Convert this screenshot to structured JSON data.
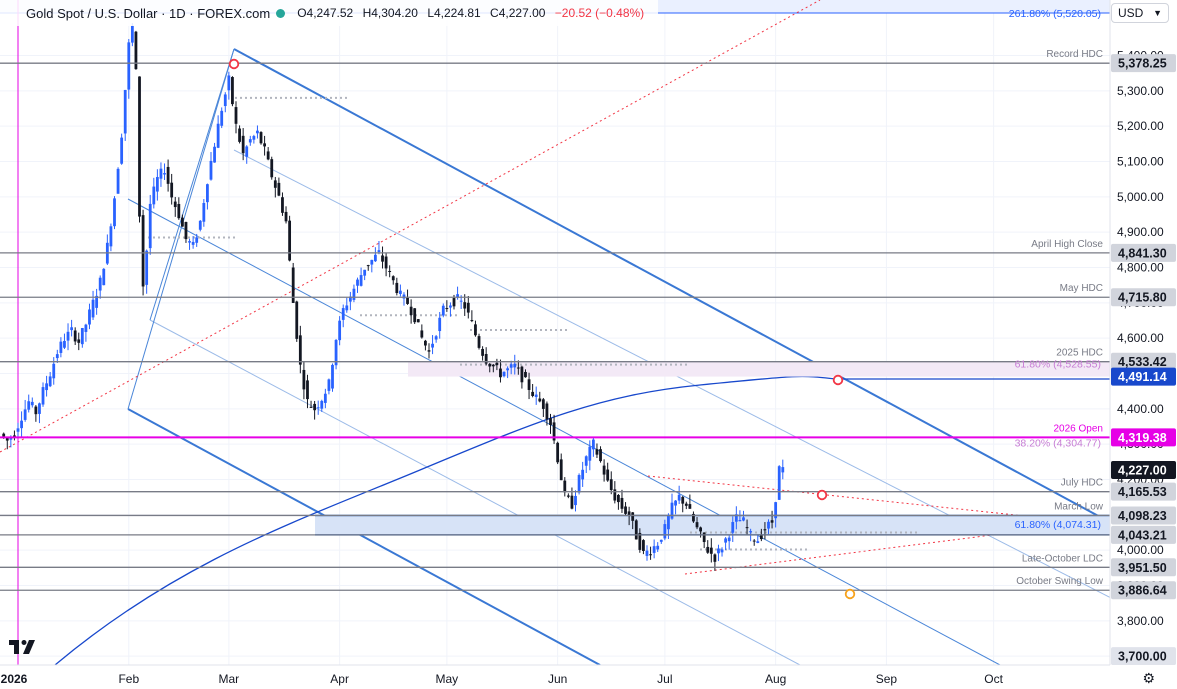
{
  "header": {
    "symbol": "Gold Spot / U.S. Dollar · 1D · FOREX.com",
    "open": "O4,247.52",
    "high": "H4,304.20",
    "low": "L4,224.81",
    "close": "C4,227.00",
    "change": "−20.52 (−0.48%)",
    "currency": "USD"
  },
  "settings_icon": "gear-icon",
  "logo": "tradingview-logo",
  "chart_data": {
    "type": "candlestick",
    "title": "Gold Spot / U.S. Dollar · 1D · FOREX.com",
    "ylim": [
      3680,
      5560
    ],
    "y_ticks": [
      {
        "value": 5400,
        "label": "5,400.00"
      },
      {
        "value": 5300,
        "label": "5,300.00"
      },
      {
        "value": 5200,
        "label": "5,200.00"
      },
      {
        "value": 5100,
        "label": "5,100.00"
      },
      {
        "value": 5000,
        "label": "5,000.00"
      },
      {
        "value": 4900,
        "label": "4,900.00"
      },
      {
        "value": 4800,
        "label": "4,800.00"
      },
      {
        "value": 4700,
        "label": "4,700.00"
      },
      {
        "value": 4600,
        "label": "4,600.00"
      },
      {
        "value": 4500,
        "label": "4,500.00"
      },
      {
        "value": 4400,
        "label": "4,400.00"
      },
      {
        "value": 4300,
        "label": "4,300.00"
      },
      {
        "value": 4200,
        "label": "4,200.00"
      },
      {
        "value": 4100,
        "label": "4,100.00"
      },
      {
        "value": 4000,
        "label": "4,000.00"
      },
      {
        "value": 3900,
        "label": "3,900.00"
      },
      {
        "value": 3800,
        "label": "3,800.00"
      },
      {
        "value": 3700,
        "label": "3,700.00"
      }
    ],
    "x_ticks": [
      {
        "day": 0,
        "label": "2026",
        "bold": true
      },
      {
        "day": 31,
        "label": "Feb"
      },
      {
        "day": 59,
        "label": "Mar"
      },
      {
        "day": 90,
        "label": "Apr"
      },
      {
        "day": 120,
        "label": "May"
      },
      {
        "day": 151,
        "label": "Jun"
      },
      {
        "day": 181,
        "label": "Jul"
      },
      {
        "day": 212,
        "label": "Aug"
      },
      {
        "day": 243,
        "label": "Sep"
      },
      {
        "day": 273,
        "label": "Oct"
      }
    ],
    "levels": [
      {
        "name": "Record HDC",
        "value": 5378.25,
        "label": "5,378.25",
        "color": "#787b86",
        "tag": "#787b86"
      },
      {
        "name": "April High Close",
        "value": 4841.3,
        "label": "4,841.30",
        "color": "#787b86",
        "tag": "#787b86"
      },
      {
        "name": "May HDC",
        "value": 4715.8,
        "label": "4,715.80",
        "color": "#787b86",
        "tag": "#787b86"
      },
      {
        "name": "2025 HDC",
        "value": 4533.42,
        "label": "4,533.42",
        "color": "#787b86",
        "tag": "#787b86"
      },
      {
        "name": "2026 Open",
        "value": 4319.38,
        "label": "4,319.38",
        "color": "#e600e6",
        "tag": "#e600e6"
      },
      {
        "name": "July HDC",
        "value": 4165.53,
        "label": "4,165.53",
        "color": "#787b86",
        "tag": "#787b86"
      },
      {
        "name": "March Low",
        "value": 4098.23,
        "label": "4,098.23",
        "color": "#787b86",
        "tag": "#787b86"
      },
      {
        "name": "",
        "value": 4043.21,
        "label": "4,043.21",
        "color": "#787b86",
        "tag": "#787b86"
      },
      {
        "name": "Late-October LDC",
        "value": 3951.5,
        "label": "3,951.50",
        "color": "#787b86",
        "tag": "#787b86"
      },
      {
        "name": "October Swing Low",
        "value": 3886.64,
        "label": "3,886.64",
        "color": "#787b86",
        "tag": "#787b86"
      }
    ],
    "fib_labels": [
      {
        "text": "261.80% (5,520.05)",
        "value": 5520.05,
        "color": "#2962ff"
      },
      {
        "text": "61.80% (4,528.55)",
        "value": 4528.55,
        "color": "#c77dd4"
      },
      {
        "text": "38.20% (4,304.77)",
        "value": 4304.77,
        "color": "#c77dd4"
      },
      {
        "text": "61.80% (4,074.31)",
        "value": 4074.31,
        "color": "#2962ff"
      }
    ],
    "current_price": {
      "value": 4227.0,
      "label": "4,227.00",
      "color": "#131722"
    },
    "ma_value": {
      "value": 4491.14,
      "label": "4,491.14",
      "color": "#1848cc"
    },
    "axis_bottom_label": {
      "value": 3700,
      "label": "3,700.00"
    },
    "price_path": [
      [
        -4,
        4330
      ],
      [
        -2,
        4310
      ],
      [
        0,
        4330
      ],
      [
        2,
        4380
      ],
      [
        4,
        4420
      ],
      [
        6,
        4390
      ],
      [
        8,
        4450
      ],
      [
        10,
        4500
      ],
      [
        12,
        4560
      ],
      [
        14,
        4600
      ],
      [
        16,
        4620
      ],
      [
        18,
        4590
      ],
      [
        20,
        4640
      ],
      [
        22,
        4700
      ],
      [
        24,
        4760
      ],
      [
        26,
        4860
      ],
      [
        28,
        5000
      ],
      [
        30,
        5180
      ],
      [
        32,
        5430
      ],
      [
        33,
        5480
      ],
      [
        34,
        5350
      ],
      [
        35,
        4950
      ],
      [
        36,
        4750
      ],
      [
        37,
        4850
      ],
      [
        38,
        4980
      ],
      [
        40,
        5050
      ],
      [
        42,
        5080
      ],
      [
        44,
        5000
      ],
      [
        46,
        4950
      ],
      [
        48,
        4880
      ],
      [
        50,
        4860
      ],
      [
        52,
        4930
      ],
      [
        54,
        5050
      ],
      [
        56,
        5150
      ],
      [
        58,
        5250
      ],
      [
        60,
        5330
      ],
      [
        62,
        5200
      ],
      [
        64,
        5120
      ],
      [
        66,
        5160
      ],
      [
        68,
        5180
      ],
      [
        70,
        5130
      ],
      [
        72,
        5060
      ],
      [
        74,
        5000
      ],
      [
        76,
        4930
      ],
      [
        78,
        4700
      ],
      [
        80,
        4520
      ],
      [
        82,
        4420
      ],
      [
        84,
        4400
      ],
      [
        86,
        4430
      ],
      [
        88,
        4470
      ],
      [
        90,
        4600
      ],
      [
        92,
        4680
      ],
      [
        94,
        4720
      ],
      [
        96,
        4760
      ],
      [
        98,
        4800
      ],
      [
        100,
        4820
      ],
      [
        102,
        4840
      ],
      [
        104,
        4800
      ],
      [
        106,
        4760
      ],
      [
        108,
        4720
      ],
      [
        110,
        4700
      ],
      [
        112,
        4660
      ],
      [
        114,
        4600
      ],
      [
        116,
        4560
      ],
      [
        118,
        4620
      ],
      [
        120,
        4680
      ],
      [
        122,
        4700
      ],
      [
        124,
        4710
      ],
      [
        126,
        4690
      ],
      [
        128,
        4640
      ],
      [
        130,
        4580
      ],
      [
        132,
        4540
      ],
      [
        134,
        4520
      ],
      [
        136,
        4500
      ],
      [
        138,
        4510
      ],
      [
        140,
        4520
      ],
      [
        142,
        4490
      ],
      [
        144,
        4460
      ],
      [
        146,
        4430
      ],
      [
        148,
        4410
      ],
      [
        150,
        4360
      ],
      [
        152,
        4260
      ],
      [
        154,
        4150
      ],
      [
        156,
        4130
      ],
      [
        158,
        4200
      ],
      [
        160,
        4260
      ],
      [
        162,
        4300
      ],
      [
        164,
        4250
      ],
      [
        166,
        4190
      ],
      [
        168,
        4150
      ],
      [
        170,
        4120
      ],
      [
        172,
        4100
      ],
      [
        174,
        4040
      ],
      [
        176,
        3990
      ],
      [
        178,
        4000
      ],
      [
        180,
        4020
      ],
      [
        182,
        4060
      ],
      [
        184,
        4120
      ],
      [
        186,
        4150
      ],
      [
        188,
        4130
      ],
      [
        190,
        4080
      ],
      [
        192,
        4040
      ],
      [
        194,
        4000
      ],
      [
        196,
        3980
      ],
      [
        198,
        4010
      ],
      [
        200,
        4050
      ],
      [
        202,
        4090
      ],
      [
        204,
        4080
      ],
      [
        206,
        4040
      ],
      [
        208,
        4030
      ],
      [
        210,
        4060
      ],
      [
        212,
        4080
      ],
      [
        213,
        4150
      ],
      [
        214,
        4230
      ],
      [
        215,
        4227
      ]
    ]
  }
}
